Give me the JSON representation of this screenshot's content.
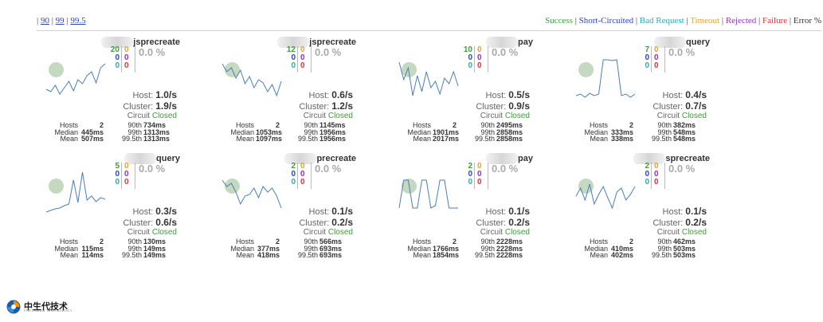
{
  "percentiles": [
    "90",
    "99",
    "99.5"
  ],
  "legend": [
    {
      "label": "Success",
      "color": "#3b9e3b"
    },
    {
      "label": "Short-Circuited",
      "color": "#2b47b6"
    },
    {
      "label": "Bad Request",
      "color": "#34a6b1"
    },
    {
      "label": "Timeout",
      "color": "#e5a23a"
    },
    {
      "label": "Rejected",
      "color": "#8a36b3"
    },
    {
      "label": "Failure",
      "color": "#d43a3a"
    },
    {
      "label": "Error %",
      "color": "#333333"
    }
  ],
  "cards": [
    {
      "name": "jsprecreate",
      "success": "20",
      "short": "0",
      "bad": "0",
      "timeout": "0",
      "rejected": "0",
      "failure": "0",
      "error": "0.0 %",
      "host": "1.0/s",
      "cluster": "1.9/s",
      "circuit": "Closed",
      "hosts": "2",
      "median": "445ms",
      "mean": "507ms",
      "p90": "734ms",
      "p99": "1313ms",
      "p995": "1313ms",
      "spark": [
        52,
        55,
        47,
        58,
        50,
        42,
        54,
        40,
        45,
        35,
        30,
        44,
        25,
        20
      ]
    },
    {
      "name": "jsprecreate",
      "success": "12",
      "short": "0",
      "bad": "0",
      "timeout": "0",
      "rejected": "0",
      "failure": "0",
      "error": "0.0 %",
      "host": "0.6/s",
      "cluster": "1.2/s",
      "circuit": "Closed",
      "hosts": "2",
      "median": "1053ms",
      "mean": "1097ms",
      "p90": "1145ms",
      "p99": "1956ms",
      "p995": "1956ms",
      "spark": [
        20,
        30,
        25,
        38,
        28,
        45,
        36,
        50,
        40,
        44,
        55,
        46,
        60,
        42
      ]
    },
    {
      "name": "pay",
      "success": "10",
      "short": "0",
      "bad": "0",
      "timeout": "0",
      "rejected": "0",
      "failure": "0",
      "error": "0.0 %",
      "host": "0.5/s",
      "cluster": "0.9/s",
      "circuit": "Closed",
      "hosts": "2",
      "median": "1901ms",
      "mean": "2017ms",
      "p90": "2495ms",
      "p99": "2858ms",
      "p995": "2858ms",
      "spark": [
        18,
        40,
        25,
        60,
        35,
        55,
        30,
        50,
        42,
        58,
        38,
        45,
        30,
        48
      ]
    },
    {
      "name": "query",
      "success": "7",
      "short": "0",
      "bad": "0",
      "timeout": "0",
      "rejected": "0",
      "failure": "0",
      "error": "0.0 %",
      "host": "0.4/s",
      "cluster": "0.7/s",
      "circuit": "Closed",
      "hosts": "2",
      "median": "333ms",
      "mean": "338ms",
      "p90": "382ms",
      "p99": "548ms",
      "p995": "548ms",
      "spark": [
        60,
        58,
        62,
        57,
        60,
        58,
        15,
        15,
        16,
        15,
        60,
        58,
        62,
        58
      ]
    },
    {
      "name": "query",
      "success": "5",
      "short": "0",
      "bad": "0",
      "timeout": "0",
      "rejected": "0",
      "failure": "0",
      "error": "0.0 %",
      "host": "0.3/s",
      "cluster": "0.6/s",
      "circuit": "Closed",
      "hosts": "2",
      "median": "115ms",
      "mean": "114ms",
      "p90": "130ms",
      "p99": "149ms",
      "p995": "149ms",
      "spark": [
        60,
        58,
        56,
        55,
        52,
        50,
        20,
        48,
        10,
        45,
        40,
        47,
        42,
        44
      ]
    },
    {
      "name": "precreate",
      "success": "2",
      "short": "0",
      "bad": "0",
      "timeout": "0",
      "rejected": "0",
      "failure": "0",
      "error": "0.0 %",
      "host": "0.1/s",
      "cluster": "0.2/s",
      "circuit": "Closed",
      "hosts": "2",
      "median": "377ms",
      "mean": "418ms",
      "p90": "566ms",
      "p99": "693ms",
      "p995": "693ms",
      "spark": [
        20,
        28,
        24,
        35,
        50,
        40,
        38,
        30,
        42,
        28,
        35,
        30,
        40,
        55
      ]
    },
    {
      "name": "pay",
      "success": "2",
      "short": "0",
      "bad": "0",
      "timeout": "0",
      "rejected": "0",
      "failure": "0",
      "error": "0.0 %",
      "host": "0.1/s",
      "cluster": "0.2/s",
      "circuit": "Closed",
      "hosts": "2",
      "median": "1766ms",
      "mean": "1854ms",
      "p90": "2228ms",
      "p99": "2228ms",
      "p995": "2228ms",
      "spark": [
        55,
        20,
        20,
        55,
        55,
        20,
        20,
        55,
        52,
        20,
        20,
        55,
        55,
        55
      ]
    },
    {
      "name": "sprecreate",
      "success": "2",
      "short": "0",
      "bad": "0",
      "timeout": "0",
      "rejected": "0",
      "failure": "0",
      "error": "0.0 %",
      "host": "0.1/s",
      "cluster": "0.2/s",
      "circuit": "Closed",
      "hosts": "2",
      "median": "410ms",
      "mean": "402ms",
      "p90": "462ms",
      "p99": "503ms",
      "p995": "503ms",
      "spark": [
        40,
        30,
        45,
        25,
        50,
        38,
        28,
        42,
        55,
        35,
        30,
        45,
        38,
        28
      ]
    }
  ],
  "stat_labels": {
    "hosts": "Hosts",
    "median": "Median",
    "mean": "Mean",
    "p90": "90th",
    "p99": "99th",
    "p995": "99.5th",
    "host": "Host:",
    "cluster": "Cluster:",
    "circuit": "Circuit"
  },
  "logo": {
    "text": "中生代技术",
    "sub": "FRESHMAN TECHNOLOGY",
    "colors": [
      "#1e5aa8",
      "#f29400"
    ]
  }
}
